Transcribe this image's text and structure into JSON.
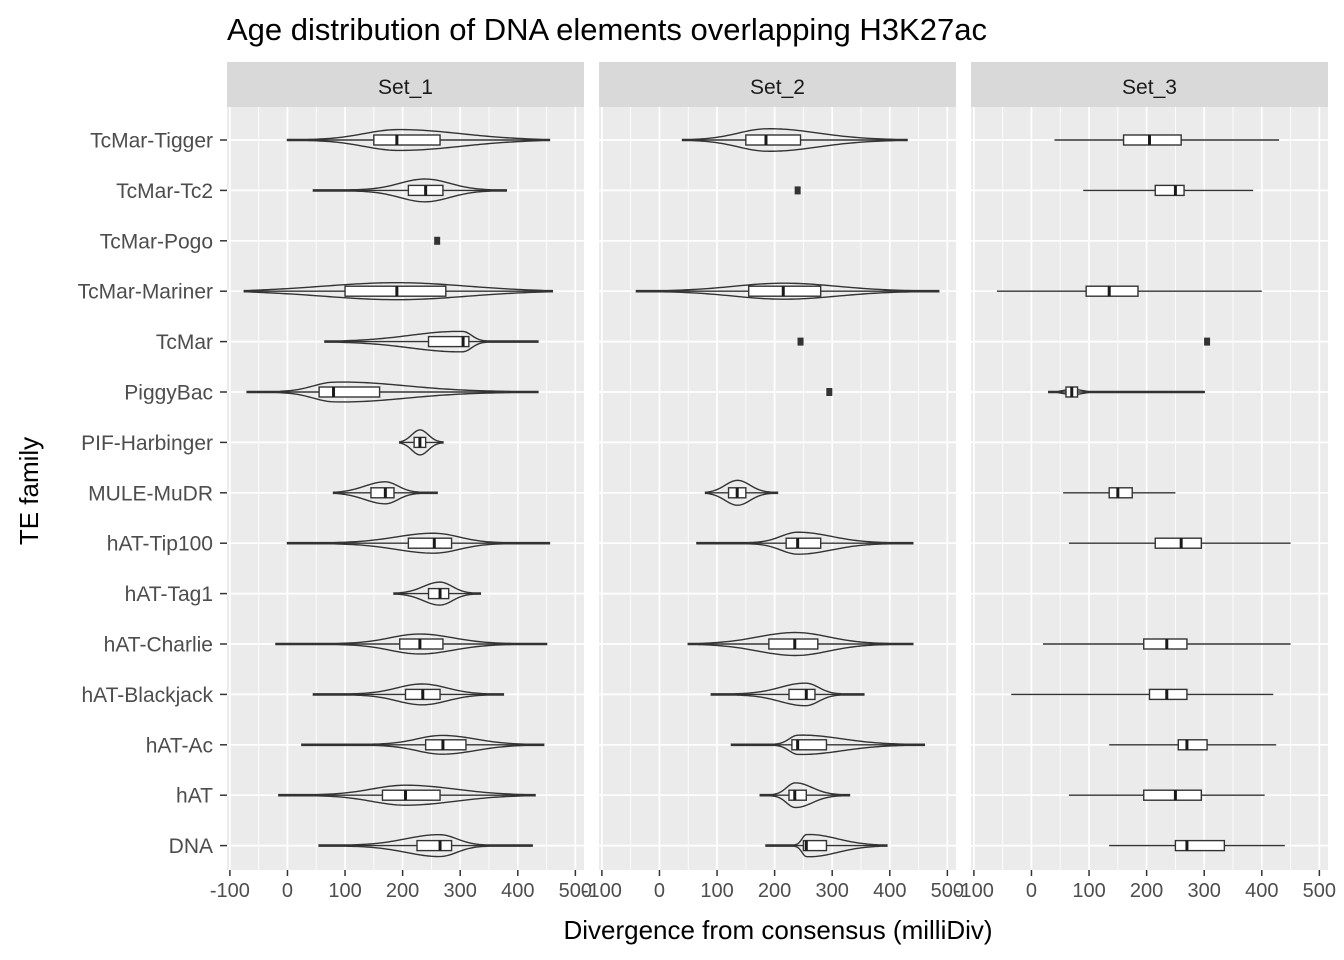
{
  "chart_data": {
    "type": "violin",
    "title": "Age distribution of DNA elements overlapping H3K27ac",
    "xlabel": "Divergence from consensus (milliDiv)",
    "ylabel": "TE family",
    "xlim": [
      -105,
      515
    ],
    "x_ticks": [
      -100,
      0,
      100,
      200,
      300,
      400,
      500
    ],
    "x_tick_labels": [
      "-100",
      "0",
      "100",
      "200",
      "300",
      "400",
      "500"
    ],
    "categories": [
      "TcMar-Tigger",
      "TcMar-Tc2",
      "TcMar-Pogo",
      "TcMar-Mariner",
      "TcMar",
      "PiggyBac",
      "PIF-Harbinger",
      "MULE-MuDR",
      "hAT-Tip100",
      "hAT-Tag1",
      "hAT-Charlie",
      "hAT-Blackjack",
      "hAT-Ac",
      "hAT",
      "DNA"
    ],
    "panels": [
      {
        "name": "Set_1",
        "series": [
          {
            "family": "TcMar-Tigger",
            "min": 0,
            "q1": 150,
            "median": 190,
            "q3": 265,
            "max": 455,
            "peak_width": 0.42
          },
          {
            "family": "TcMar-Tc2",
            "min": 45,
            "q1": 210,
            "median": 240,
            "q3": 270,
            "max": 380,
            "peak_width": 0.46
          },
          {
            "family": "TcMar-Pogo",
            "single": 260
          },
          {
            "family": "TcMar-Mariner",
            "min": -75,
            "q1": 100,
            "median": 190,
            "q3": 275,
            "max": 460,
            "peak_width": 0.34
          },
          {
            "family": "TcMar",
            "min": 65,
            "q1": 245,
            "median": 305,
            "q3": 315,
            "max": 435,
            "peak_width": 0.42
          },
          {
            "family": "PiggyBac",
            "min": -70,
            "q1": 55,
            "median": 80,
            "q3": 160,
            "max": 435,
            "peak_width": 0.42
          },
          {
            "family": "PIF-Harbinger",
            "min": 195,
            "q1": 220,
            "median": 230,
            "q3": 240,
            "max": 270,
            "peak_width": 0.5
          },
          {
            "family": "MULE-MuDR",
            "min": 80,
            "q1": 145,
            "median": 170,
            "q3": 185,
            "max": 260,
            "peak_width": 0.44
          },
          {
            "family": "hAT-Tip100",
            "min": 0,
            "q1": 210,
            "median": 255,
            "q3": 285,
            "max": 455,
            "peak_width": 0.4
          },
          {
            "family": "hAT-Tag1",
            "min": 185,
            "q1": 245,
            "median": 265,
            "q3": 280,
            "max": 335,
            "peak_width": 0.46
          },
          {
            "family": "hAT-Charlie",
            "min": -20,
            "q1": 195,
            "median": 230,
            "q3": 270,
            "max": 450,
            "peak_width": 0.4
          },
          {
            "family": "hAT-Blackjack",
            "min": 45,
            "q1": 205,
            "median": 235,
            "q3": 265,
            "max": 375,
            "peak_width": 0.42
          },
          {
            "family": "hAT-Ac",
            "min": 25,
            "q1": 240,
            "median": 270,
            "q3": 310,
            "max": 445,
            "peak_width": 0.38
          },
          {
            "family": "hAT",
            "min": -15,
            "q1": 165,
            "median": 205,
            "q3": 265,
            "max": 430,
            "peak_width": 0.4
          },
          {
            "family": "DNA",
            "min": 55,
            "q1": 225,
            "median": 265,
            "q3": 285,
            "max": 425,
            "peak_width": 0.44
          }
        ]
      },
      {
        "name": "Set_2",
        "series": [
          {
            "family": "TcMar-Tigger",
            "min": 40,
            "q1": 150,
            "median": 185,
            "q3": 245,
            "max": 430,
            "peak_width": 0.46
          },
          {
            "family": "TcMar-Tc2",
            "single": 240
          },
          {
            "family": "TcMar-Pogo",
            "none": true
          },
          {
            "family": "TcMar-Mariner",
            "min": -40,
            "q1": 155,
            "median": 215,
            "q3": 280,
            "max": 485,
            "peak_width": 0.32
          },
          {
            "family": "TcMar",
            "single": 245
          },
          {
            "family": "PiggyBac",
            "single": 295
          },
          {
            "family": "PIF-Harbinger",
            "none": true
          },
          {
            "family": "MULE-MuDR",
            "min": 80,
            "q1": 120,
            "median": 135,
            "q3": 150,
            "max": 205,
            "peak_width": 0.5
          },
          {
            "family": "hAT-Tip100",
            "min": 65,
            "q1": 220,
            "median": 240,
            "q3": 280,
            "max": 440,
            "peak_width": 0.44
          },
          {
            "family": "hAT-Tag1",
            "none": true
          },
          {
            "family": "hAT-Charlie",
            "min": 50,
            "q1": 190,
            "median": 235,
            "q3": 275,
            "max": 440,
            "peak_width": 0.46
          },
          {
            "family": "hAT-Blackjack",
            "min": 90,
            "q1": 225,
            "median": 255,
            "q3": 270,
            "max": 355,
            "peak_width": 0.46
          },
          {
            "family": "hAT-Ac",
            "min": 125,
            "q1": 230,
            "median": 240,
            "q3": 290,
            "max": 460,
            "peak_width": 0.4
          },
          {
            "family": "hAT",
            "min": 175,
            "q1": 225,
            "median": 235,
            "q3": 255,
            "max": 330,
            "peak_width": 0.5
          },
          {
            "family": "DNA",
            "min": 185,
            "q1": 250,
            "median": 255,
            "q3": 290,
            "max": 395,
            "peak_width": 0.46
          }
        ]
      },
      {
        "name": "Set_3",
        "series": [
          {
            "family": "TcMar-Tigger",
            "min": 40,
            "q1": 160,
            "median": 205,
            "q3": 260,
            "max": 430,
            "boxplot_only": true
          },
          {
            "family": "TcMar-Tc2",
            "min": 90,
            "q1": 215,
            "median": 250,
            "q3": 265,
            "max": 385,
            "boxplot_only": true
          },
          {
            "family": "TcMar-Pogo",
            "none": true
          },
          {
            "family": "TcMar-Mariner",
            "min": -60,
            "q1": 95,
            "median": 135,
            "q3": 185,
            "max": 400,
            "boxplot_only": true
          },
          {
            "family": "TcMar",
            "single": 305
          },
          {
            "family": "PiggyBac",
            "min": 30,
            "q1": 60,
            "median": 70,
            "q3": 80,
            "max": 300,
            "peak_width": 0.14
          },
          {
            "family": "PIF-Harbinger",
            "none": true
          },
          {
            "family": "MULE-MuDR",
            "min": 55,
            "q1": 135,
            "median": 150,
            "q3": 175,
            "max": 250,
            "boxplot_only": true
          },
          {
            "family": "hAT-Tip100",
            "min": 65,
            "q1": 215,
            "median": 260,
            "q3": 295,
            "max": 450,
            "boxplot_only": true
          },
          {
            "family": "hAT-Tag1",
            "none": true
          },
          {
            "family": "hAT-Charlie",
            "min": 20,
            "q1": 195,
            "median": 235,
            "q3": 270,
            "max": 450,
            "boxplot_only": true
          },
          {
            "family": "hAT-Blackjack",
            "min": -35,
            "q1": 205,
            "median": 235,
            "q3": 270,
            "max": 420,
            "boxplot_only": true
          },
          {
            "family": "hAT-Ac",
            "min": 135,
            "q1": 255,
            "median": 270,
            "q3": 305,
            "max": 425,
            "boxplot_only": true
          },
          {
            "family": "hAT",
            "min": 65,
            "q1": 195,
            "median": 250,
            "q3": 295,
            "max": 405,
            "boxplot_only": true
          },
          {
            "family": "DNA",
            "min": 135,
            "q1": 250,
            "median": 270,
            "q3": 335,
            "max": 440,
            "boxplot_only": true
          }
        ]
      }
    ]
  }
}
